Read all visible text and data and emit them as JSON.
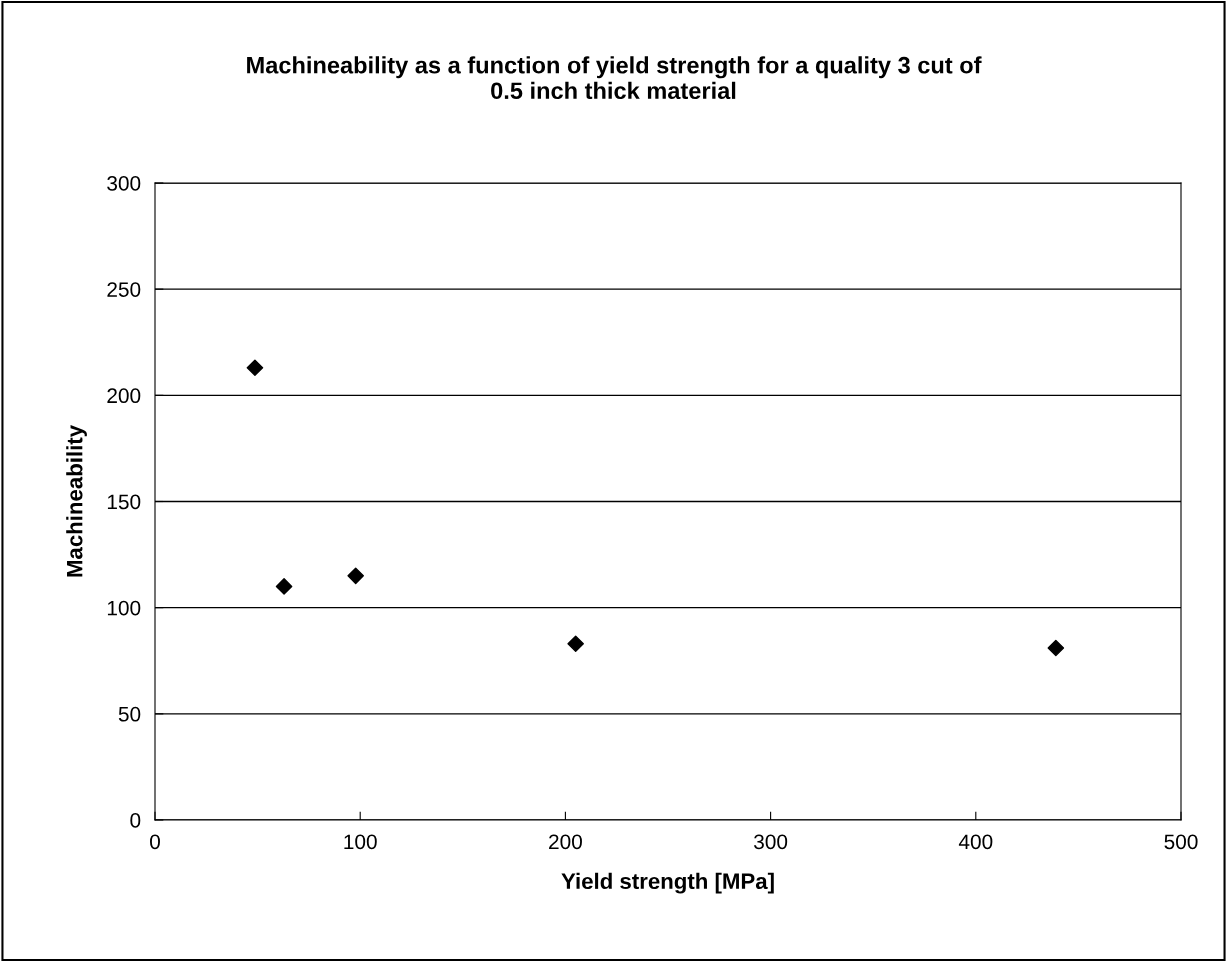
{
  "chart_data": {
    "type": "scatter",
    "title": "Machineability as a function of yield strength for a quality 3 cut of\n0.5 inch thick material",
    "xlabel": "Yield strength [MPa]",
    "ylabel": "Machineability",
    "x": [
      48.7,
      62.9,
      97.8,
      205,
      439
    ],
    "series": [
      {
        "color": "#000000",
        "values": [
          213,
          110,
          115,
          83,
          81
        ]
      }
    ],
    "xlim": [
      0,
      500
    ],
    "xticks": [
      0,
      100,
      200,
      300,
      400,
      500
    ],
    "ylim": [
      0,
      300
    ],
    "yticks": [
      0,
      50,
      100,
      150,
      200,
      250,
      300
    ],
    "grid": "y",
    "marker": "diamond",
    "legend": false
  }
}
